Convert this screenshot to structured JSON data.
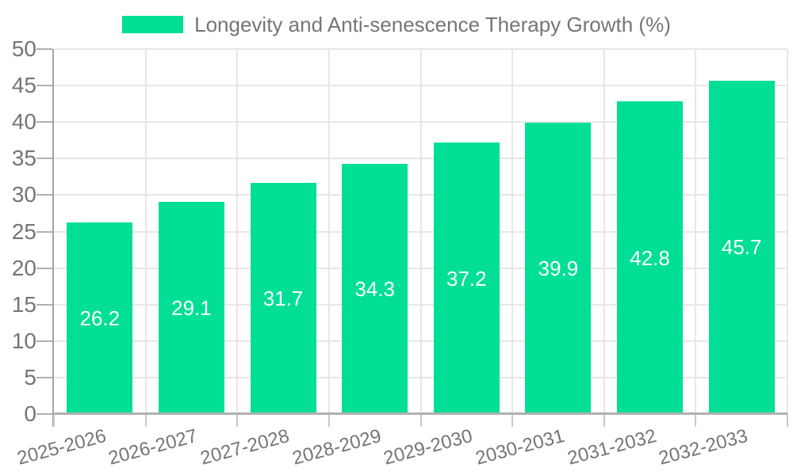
{
  "legend": {
    "label": "Longevity and Anti-senescence Therapy Growth (%)"
  },
  "chart_data": {
    "type": "bar",
    "title": "Longevity and Anti-senescence Therapy Growth (%)",
    "categories": [
      "2025-2026",
      "2026-2027",
      "2027-2028",
      "2028-2029",
      "2029-2030",
      "2030-2031",
      "2031-2032",
      "2032-2033"
    ],
    "values": [
      26.2,
      29.1,
      31.7,
      34.3,
      37.2,
      39.9,
      42.8,
      45.7
    ],
    "value_labels": [
      "26.2",
      "29.1",
      "31.7",
      "34.3",
      "37.2",
      "39.9",
      "42.8",
      "45.7"
    ],
    "ytick_labels": [
      "0",
      "5",
      "10",
      "15",
      "20",
      "25",
      "30",
      "35",
      "40",
      "45",
      "50"
    ],
    "xlabel": "",
    "ylabel": "",
    "ylim": [
      0,
      50
    ],
    "ytick_step": 5,
    "grid": true,
    "legend_position": "top",
    "x_label_rotation_deg": -15
  },
  "colors": {
    "bar": "#00df95",
    "grid_line": "#e7e7e7",
    "axis_line": "#a3a3a3",
    "baseline": "#b1b1b1",
    "tick_text": "#757575",
    "value_text": "#ffffff",
    "background": "#ffffff"
  }
}
